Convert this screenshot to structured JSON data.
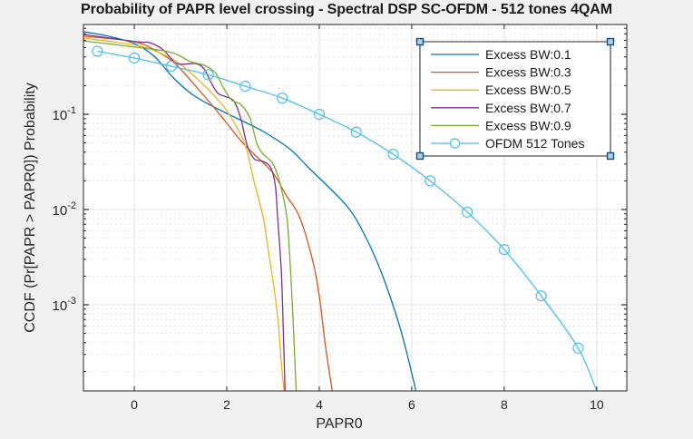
{
  "chart_data": {
    "type": "line",
    "title": "Probability of PAPR level crossing - Spectral DSP SC-OFDM - 512 tones  4QAM",
    "xlabel": "PAPR0",
    "ylabel": "CCDF (Pr[PAPR > PAPR0]) Probability",
    "xlim": [
      -1.1,
      10.65
    ],
    "ylim": [
      0.0001245,
      0.877
    ],
    "yscale": "log",
    "grid": true,
    "minor_grid": true,
    "x_ticks": [
      0,
      2,
      4,
      6,
      8,
      10
    ],
    "x_tick_labels": [
      "0",
      "2",
      "4",
      "6",
      "8",
      "10"
    ],
    "y_ticks": [
      0.1,
      0.01,
      0.001
    ],
    "y_tick_labels": [
      {
        "base": "10",
        "exp": "-1"
      },
      {
        "base": "10",
        "exp": "-2"
      },
      {
        "base": "10",
        "exp": "-3"
      }
    ],
    "legend_position": "top-right",
    "series": [
      {
        "name": "Excess BW:0.1",
        "color": "#0072bd",
        "marker": "none",
        "x": [
          -1.1,
          -0.55,
          0,
          0.43,
          0.83,
          1.22,
          1.61,
          2.2,
          2.79,
          3.38,
          3.77,
          4.56,
          4.95,
          5.34,
          5.74,
          6.03,
          6.09
        ],
        "y": [
          0.736,
          0.659,
          0.553,
          0.407,
          0.246,
          0.166,
          0.127,
          0.0916,
          0.0659,
          0.0425,
          0.0274,
          0.0114,
          0.00578,
          0.0022,
          0.00059,
          0.000166,
          0.000124
        ]
      },
      {
        "name": "Excess BW:0.3",
        "color": "#d95319",
        "marker": "none",
        "x": [
          -1.1,
          0,
          0.53,
          0.92,
          1.41,
          1.91,
          2.3,
          2.59,
          2.99,
          3.28,
          3.58,
          3.87,
          4.01,
          4.13,
          4.28
        ],
        "y": [
          0.659,
          0.578,
          0.445,
          0.327,
          0.177,
          0.0916,
          0.053,
          0.0381,
          0.0245,
          0.0142,
          0.0082,
          0.00274,
          0.00114,
          0.00038,
          0.000124
        ]
      },
      {
        "name": "Excess BW:0.5",
        "color": "#edb120",
        "marker": "none",
        "x": [
          -1.1,
          0.04,
          0.53,
          0.92,
          1.32,
          1.81,
          2.1,
          2.4,
          2.59,
          2.79,
          2.91,
          3.03,
          3.12,
          3.18,
          3.24
        ],
        "y": [
          0.631,
          0.53,
          0.445,
          0.356,
          0.246,
          0.142,
          0.0916,
          0.0474,
          0.0197,
          0.0082,
          0.0034,
          0.00142,
          0.00059,
          0.000245,
          0.000124
        ]
      },
      {
        "name": "Excess BW:0.7",
        "color": "#7e2f8e",
        "marker": "none",
        "x": [
          -1.1,
          0.04,
          0.33,
          0.63,
          0.92,
          1.32,
          1.51,
          1.65,
          1.81,
          2.0,
          2.16,
          2.3,
          2.44,
          2.59,
          2.79,
          2.95,
          3.05,
          3.1,
          3.18,
          3.22,
          3.26
        ],
        "y": [
          0.689,
          0.578,
          0.565,
          0.474,
          0.341,
          0.341,
          0.299,
          0.22,
          0.166,
          0.152,
          0.136,
          0.0916,
          0.0474,
          0.0341,
          0.032,
          0.0274,
          0.0177,
          0.0082,
          0.0022,
          0.00059,
          0.000124
        ]
      },
      {
        "name": "Excess BW:0.9",
        "color": "#77ac30",
        "marker": "none",
        "x": [
          -1.1,
          0.04,
          0.63,
          0.92,
          1.22,
          1.51,
          1.75,
          1.91,
          2.1,
          2.3,
          2.5,
          2.65,
          2.79,
          2.99,
          3.14,
          3.3,
          3.38,
          3.44,
          3.5
        ],
        "y": [
          0.59,
          0.507,
          0.465,
          0.425,
          0.356,
          0.327,
          0.274,
          0.197,
          0.142,
          0.127,
          0.0916,
          0.0495,
          0.0381,
          0.0306,
          0.0197,
          0.0082,
          0.0022,
          0.00059,
          0.000124
        ]
      },
      {
        "name": "OFDM 512 Tones",
        "color": "#4dbeee",
        "marker": "circle",
        "x": [
          -0.8,
          0,
          0.8,
          1.6,
          2.4,
          3.2,
          4.0,
          4.8,
          5.6,
          6.4,
          7.2,
          8.0,
          8.8,
          9.6,
          10.0
        ],
        "y": [
          0.46,
          0.39,
          0.32,
          0.26,
          0.197,
          0.148,
          0.1,
          0.065,
          0.038,
          0.02,
          0.0094,
          0.0038,
          0.00124,
          0.00035,
          0.000124
        ],
        "marker_count": 14
      }
    ]
  }
}
